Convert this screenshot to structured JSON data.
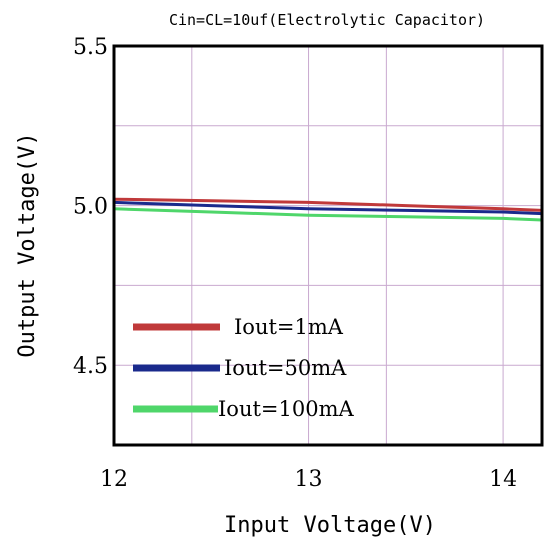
{
  "chart_data": {
    "type": "line",
    "title": "Cin=CL=10uf(Electrolytic Capacitor)",
    "xlabel": "Input Voltage(V)",
    "ylabel": "Output Voltage(V)",
    "xlim": [
      12,
      14.2
    ],
    "ylim": [
      4.25,
      5.5
    ],
    "x_ticks": [
      12,
      13,
      14
    ],
    "x_tick_labels": [
      "12",
      "13",
      "14"
    ],
    "y_ticks": [
      4.5,
      5.0,
      5.5
    ],
    "y_tick_labels": [
      "4.5",
      "5.0",
      "5.5"
    ],
    "x_grid": [
      12,
      12.4,
      13,
      13.4,
      14,
      14.2
    ],
    "y_grid": [
      4.25,
      4.5,
      4.75,
      5.0,
      5.25,
      5.5
    ],
    "grid": true,
    "legend_position": "bottom-left",
    "series": [
      {
        "name": "Iout=1mA",
        "color": "#c0393a",
        "x": [
          12,
          12.5,
          13,
          13.5,
          14,
          14.2
        ],
        "y": [
          5.02,
          5.015,
          5.01,
          5.0,
          4.99,
          4.985
        ]
      },
      {
        "name": "Iout=50mA",
        "color": "#1a2a8c",
        "x": [
          12,
          12.5,
          13,
          13.5,
          14,
          14.2
        ],
        "y": [
          5.01,
          5.0,
          4.99,
          4.985,
          4.98,
          4.975
        ]
      },
      {
        "name": "Iout=100mA",
        "color": "#4fd66a",
        "x": [
          12,
          12.5,
          13,
          13.5,
          14,
          14.2
        ],
        "y": [
          4.99,
          4.98,
          4.97,
          4.965,
          4.96,
          4.955
        ]
      }
    ]
  }
}
